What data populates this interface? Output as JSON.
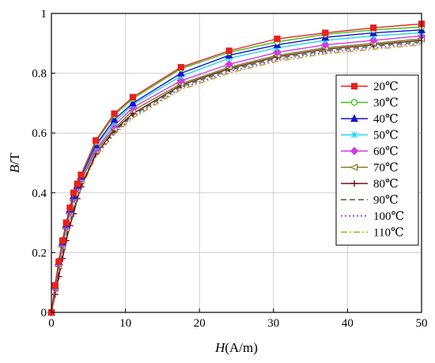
{
  "chart_data": {
    "type": "line",
    "title": "",
    "xlabel_var": "H",
    "xlabel_unit": "(A/m)",
    "ylabel_var": "B",
    "ylabel_unit": "/T",
    "xlim": [
      0,
      50
    ],
    "ylim": [
      0,
      1
    ],
    "xticks": [
      0,
      10,
      20,
      30,
      40,
      50
    ],
    "yticks": [
      0,
      0.2,
      0.4,
      0.6,
      0.8,
      1
    ],
    "xtick_labels": [
      "0",
      "10",
      "20",
      "30",
      "40",
      "50"
    ],
    "ytick_labels": [
      "0",
      "0.2",
      "0.4",
      "0.6",
      "0.8",
      "1"
    ],
    "grid": true,
    "legend_position": "right",
    "series": [
      {
        "name": "20℃",
        "color": "#e8211f",
        "dash": "solid",
        "marker": "square-filled",
        "x": [
          0,
          0.5,
          1,
          1.5,
          2,
          2.5,
          3,
          3.5,
          4,
          6,
          8.5,
          11,
          17.5,
          24,
          30.5,
          37,
          43.5,
          50
        ],
        "y": [
          0,
          0.09,
          0.17,
          0.24,
          0.3,
          0.35,
          0.4,
          0.43,
          0.46,
          0.575,
          0.665,
          0.72,
          0.82,
          0.875,
          0.915,
          0.935,
          0.952,
          0.965
        ]
      },
      {
        "name": "30℃",
        "color": "#3fbf1f",
        "dash": "solid",
        "marker": "circle-open",
        "x": [
          0,
          0.5,
          1,
          1.5,
          2,
          2.5,
          3,
          3.5,
          4,
          6,
          8.5,
          11,
          17.5,
          24,
          30.5,
          37,
          43.5,
          50
        ],
        "y": [
          0,
          0.09,
          0.17,
          0.24,
          0.3,
          0.35,
          0.4,
          0.43,
          0.46,
          0.57,
          0.66,
          0.715,
          0.815,
          0.87,
          0.905,
          0.93,
          0.945,
          0.955
        ]
      },
      {
        "name": "40℃",
        "color": "#1414d2",
        "dash": "solid",
        "marker": "triangle-filled",
        "x": [
          0,
          0.5,
          1,
          1.5,
          2,
          2.5,
          3,
          3.5,
          4,
          6,
          8.5,
          11,
          17.5,
          24,
          30.5,
          37,
          43.5,
          50
        ],
        "y": [
          0,
          0.09,
          0.17,
          0.235,
          0.295,
          0.345,
          0.39,
          0.425,
          0.455,
          0.56,
          0.645,
          0.7,
          0.8,
          0.86,
          0.895,
          0.92,
          0.935,
          0.945
        ]
      },
      {
        "name": "50℃",
        "color": "#22d6ef",
        "dash": "solid",
        "marker": "asterisk",
        "x": [
          0,
          0.5,
          1,
          1.5,
          2,
          2.5,
          3,
          3.5,
          4,
          6,
          8.5,
          11,
          17.5,
          24,
          30.5,
          37,
          43.5,
          50
        ],
        "y": [
          0,
          0.085,
          0.165,
          0.23,
          0.29,
          0.34,
          0.385,
          0.42,
          0.45,
          0.555,
          0.635,
          0.695,
          0.79,
          0.85,
          0.885,
          0.91,
          0.925,
          0.935
        ]
      },
      {
        "name": "60℃",
        "color": "#d23ce0",
        "dash": "solid",
        "marker": "diamond-filled",
        "x": [
          0,
          0.5,
          1,
          1.5,
          2,
          2.5,
          3,
          3.5,
          4,
          6,
          8.5,
          11,
          17.5,
          24,
          30.5,
          37,
          43.5,
          50
        ],
        "y": [
          0,
          0.08,
          0.16,
          0.225,
          0.285,
          0.335,
          0.38,
          0.415,
          0.445,
          0.545,
          0.625,
          0.685,
          0.775,
          0.83,
          0.87,
          0.895,
          0.91,
          0.925
        ]
      },
      {
        "name": "70℃",
        "color": "#7b7b1c",
        "dash": "solid",
        "marker": "triangle-left-open",
        "x": [
          0,
          0.5,
          1,
          1.5,
          2,
          2.5,
          3,
          3.5,
          4,
          6,
          8.5,
          11,
          17.5,
          24,
          30.5,
          37,
          43.5,
          50
        ],
        "y": [
          0,
          0.08,
          0.155,
          0.22,
          0.28,
          0.33,
          0.375,
          0.41,
          0.44,
          0.54,
          0.615,
          0.675,
          0.765,
          0.82,
          0.86,
          0.885,
          0.9,
          0.915
        ]
      },
      {
        "name": "80℃",
        "color": "#6e1414",
        "dash": "solid",
        "marker": "plus",
        "x": [
          0,
          0.5,
          1,
          1.5,
          2,
          2.5,
          3,
          3.5,
          4,
          6,
          8.5,
          11,
          17.5,
          24,
          30.5,
          37,
          43.5,
          50
        ],
        "y": [
          0,
          0.06,
          0.12,
          0.18,
          0.24,
          0.29,
          0.33,
          0.38,
          0.42,
          0.53,
          0.61,
          0.665,
          0.76,
          0.815,
          0.855,
          0.88,
          0.895,
          0.91
        ]
      },
      {
        "name": "90℃",
        "color": "#1a6e1a",
        "dash": "dashed",
        "marker": "none",
        "x": [
          0,
          0.5,
          1,
          1.5,
          2,
          2.5,
          3,
          3.5,
          4,
          6,
          8.5,
          11,
          17.5,
          24,
          30.5,
          37,
          43.5,
          50
        ],
        "y": [
          0,
          0.07,
          0.135,
          0.195,
          0.255,
          0.305,
          0.345,
          0.39,
          0.425,
          0.53,
          0.605,
          0.66,
          0.755,
          0.81,
          0.85,
          0.875,
          0.89,
          0.905
        ]
      },
      {
        "name": "100℃",
        "color": "#8a2be2",
        "dash": "dotted",
        "marker": "none",
        "x": [
          0,
          0.5,
          1,
          1.5,
          2,
          2.5,
          3,
          3.5,
          4,
          6,
          8.5,
          11,
          17.5,
          24,
          30.5,
          37,
          43.5,
          50
        ],
        "y": [
          0,
          0.07,
          0.135,
          0.195,
          0.25,
          0.3,
          0.345,
          0.385,
          0.42,
          0.525,
          0.6,
          0.655,
          0.75,
          0.805,
          0.845,
          0.87,
          0.885,
          0.9
        ]
      },
      {
        "name": "110℃",
        "color": "#c79a18",
        "dash": "dashdot",
        "marker": "none",
        "x": [
          0,
          0.5,
          1,
          1.5,
          2,
          2.5,
          3,
          3.5,
          4,
          6,
          8.5,
          11,
          17.5,
          24,
          30.5,
          37,
          43.5,
          50
        ],
        "y": [
          0,
          0.065,
          0.13,
          0.19,
          0.245,
          0.295,
          0.34,
          0.38,
          0.415,
          0.52,
          0.595,
          0.65,
          0.745,
          0.8,
          0.84,
          0.865,
          0.88,
          0.895
        ]
      }
    ]
  }
}
